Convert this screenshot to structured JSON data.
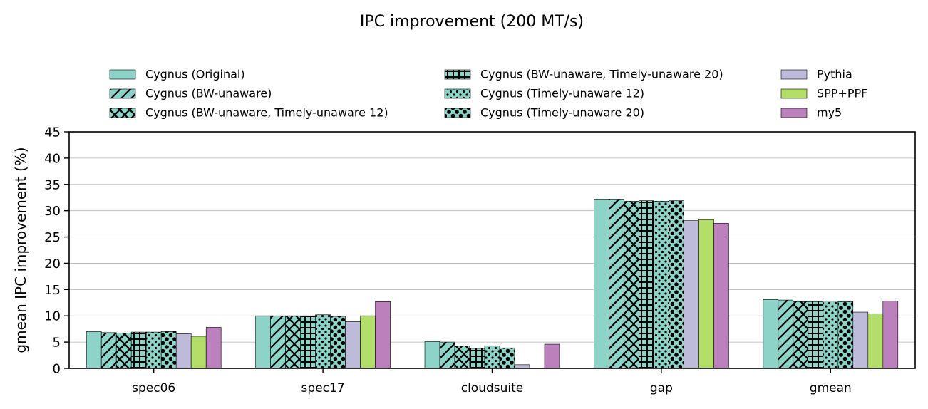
{
  "chart_data": {
    "type": "bar",
    "title": "IPC improvement (200 MT/s)",
    "xlabel": "",
    "ylabel": "gmean IPC improvement (%)",
    "ylim": [
      0,
      45
    ],
    "yticks": [
      "0",
      "5",
      "10",
      "15",
      "20",
      "25",
      "30",
      "35",
      "40",
      "45"
    ],
    "grid": "horizontal",
    "legend_position": "top",
    "categories": [
      "spec06",
      "spec17",
      "cloudsuite",
      "gap",
      "gmean"
    ],
    "series": [
      {
        "name": "Cygnus (Original)",
        "color": "#8dd3c7",
        "pattern": "none",
        "values": [
          7.0,
          10.0,
          5.1,
          32.2,
          13.1
        ]
      },
      {
        "name": "Cygnus (BW-unaware)",
        "color": "#8dd3c7",
        "pattern": "diagonal",
        "values": [
          6.8,
          10.0,
          5.0,
          32.2,
          13.0
        ]
      },
      {
        "name": "Cygnus (BW-unaware, Timely-unaware 12)",
        "color": "#8dd3c7",
        "pattern": "cross",
        "values": [
          6.7,
          10.0,
          4.3,
          31.8,
          12.7
        ]
      },
      {
        "name": "Cygnus (BW-unaware, Timely-unaware 20)",
        "color": "#8dd3c7",
        "pattern": "grid",
        "values": [
          6.9,
          10.0,
          3.8,
          31.9,
          12.7
        ]
      },
      {
        "name": "Cygnus (Timely-unaware 12)",
        "color": "#8dd3c7",
        "pattern": "dots",
        "values": [
          6.9,
          10.2,
          4.3,
          31.8,
          12.8
        ]
      },
      {
        "name": "Cygnus (Timely-unaware 20)",
        "color": "#8dd3c7",
        "pattern": "bigdots",
        "values": [
          7.0,
          9.9,
          3.9,
          31.9,
          12.7
        ]
      },
      {
        "name": "Pythia",
        "color": "#bebada",
        "pattern": "none",
        "values": [
          6.6,
          8.9,
          0.7,
          28.1,
          10.7
        ]
      },
      {
        "name": "SPP+PPF",
        "color": "#b3de69",
        "pattern": "none",
        "values": [
          6.1,
          10.0,
          0.0,
          28.3,
          10.4
        ]
      },
      {
        "name": "my5",
        "color": "#bc80bd",
        "pattern": "none",
        "values": [
          7.8,
          12.7,
          4.6,
          27.6,
          12.8
        ]
      }
    ]
  }
}
